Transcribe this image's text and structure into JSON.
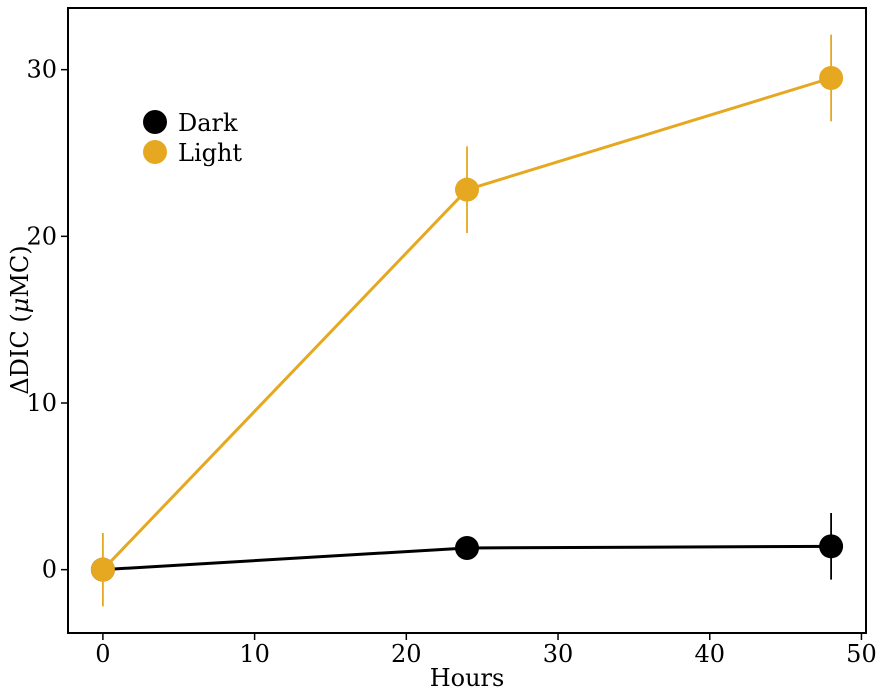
{
  "chart_data": {
    "type": "line",
    "title": "",
    "xlabel": "Hours",
    "ylabel_prefix": "ΔDIC (",
    "ylabel_unit_symbol": "μ",
    "ylabel_suffix": "MC)",
    "xlim": [
      -2.3,
      50.3
    ],
    "ylim": [
      -3.8,
      33.7
    ],
    "xticks": [
      0,
      10,
      20,
      30,
      40,
      50
    ],
    "yticks": [
      0,
      10,
      20,
      30
    ],
    "grid": false,
    "legend_position": "top-left",
    "series": [
      {
        "name": "Dark",
        "color": "#000000",
        "x": [
          0,
          24,
          48
        ],
        "y": [
          0,
          1.3,
          1.4
        ],
        "error": [
          0.05,
          0.05,
          2.0
        ]
      },
      {
        "name": "Light",
        "color": "#E6A820",
        "x": [
          0,
          24,
          48
        ],
        "y": [
          0,
          22.8,
          29.5
        ],
        "error": [
          2.2,
          2.6,
          2.6
        ]
      }
    ]
  }
}
